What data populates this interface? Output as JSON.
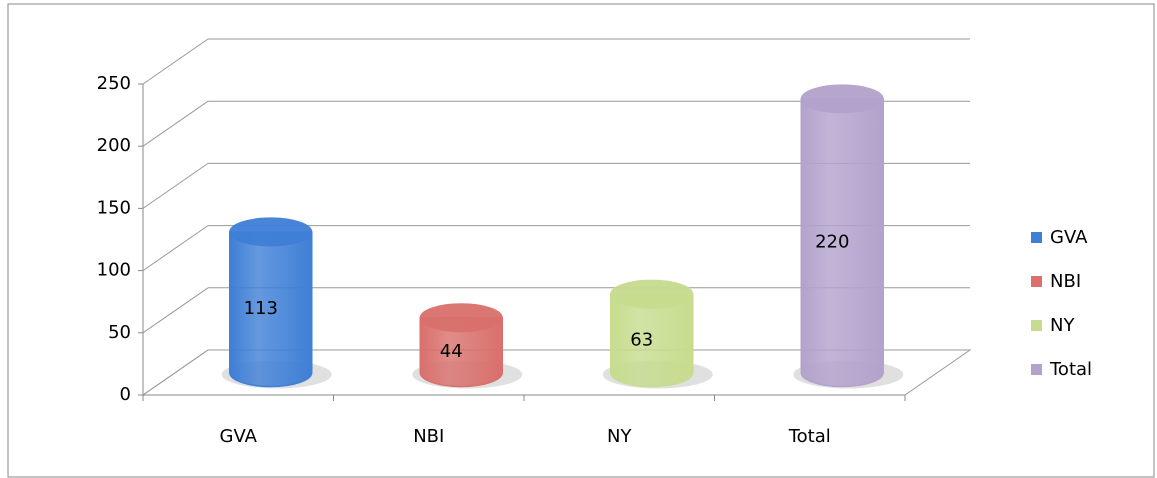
{
  "chart_data": {
    "type": "bar3d",
    "categories": [
      "GVA",
      "NBI",
      "NY",
      "Total"
    ],
    "values": [
      113,
      44,
      63,
      220
    ],
    "colors": [
      "#3f7fd6",
      "#d9706c",
      "#c6dc8e",
      "#b3a2cc"
    ],
    "ylim": [
      0,
      250
    ],
    "yticks": [
      0,
      50,
      100,
      150,
      200,
      250
    ],
    "grid": true,
    "legend": "right"
  }
}
